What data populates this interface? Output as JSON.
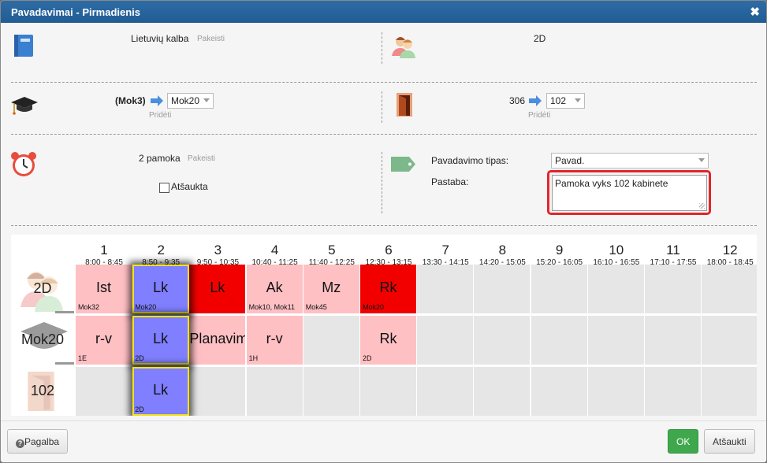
{
  "dialog": {
    "title": "Pavadavimai - Pirmadienis",
    "close": "✖"
  },
  "subject": {
    "name": "Lietuvių kalba",
    "change_link": "Pakeisti"
  },
  "group": {
    "name": "2D"
  },
  "teacher": {
    "from": "(Mok3)",
    "to": "Mok20",
    "add_link": "Pridėti"
  },
  "room": {
    "from": "306",
    "to": "102",
    "add_link": "Pridėti"
  },
  "lesson": {
    "number": "2 pamoka",
    "change_link": "Pakeisti",
    "cancelled_label": "Atšaukta",
    "cancelled_checked": false
  },
  "substitution": {
    "type_label": "Pavadavimo tipas:",
    "type_value": "Pavad.",
    "note_label": "Pastaba:",
    "note_value": "Pamoka vyks 102 kabinete"
  },
  "timetable": {
    "columns": [
      {
        "num": "1",
        "time": "8:00 - 8:45"
      },
      {
        "num": "2",
        "time": "8:50 - 9:35"
      },
      {
        "num": "3",
        "time": "9:50 - 10:35"
      },
      {
        "num": "4",
        "time": "10:40 - 11:25"
      },
      {
        "num": "5",
        "time": "11:40 - 12:25"
      },
      {
        "num": "6",
        "time": "12:30 - 13:15"
      },
      {
        "num": "7",
        "time": "13:30 - 14:15"
      },
      {
        "num": "8",
        "time": "14:20 - 15:05"
      },
      {
        "num": "9",
        "time": "15:20 - 16:05"
      },
      {
        "num": "10",
        "time": "16:10 - 16:55"
      },
      {
        "num": "11",
        "time": "17:10 - 17:55"
      },
      {
        "num": "12",
        "time": "18:00 - 18:45"
      }
    ],
    "rows": [
      {
        "label": "2D",
        "cells": [
          {
            "subj": "Ist",
            "sub": "Mok32",
            "style": "pink"
          },
          {
            "subj": "Lk",
            "sub": "Mok20",
            "style": "blue"
          },
          {
            "subj": "Lk",
            "sub": "",
            "style": "red"
          },
          {
            "subj": "Ak",
            "sub": "Mok10, Mok11",
            "style": "pink"
          },
          {
            "subj": "Mz",
            "sub": "Mok45",
            "style": "pink"
          },
          {
            "subj": "Rk",
            "sub": "Mok20",
            "style": "red"
          }
        ]
      },
      {
        "label": "Mok20",
        "cells": [
          {
            "subj": "r-v",
            "sub": "1E",
            "style": "pink"
          },
          {
            "subj": "Lk",
            "sub": "2D",
            "style": "blue"
          },
          {
            "subj": "Planavim",
            "sub": "",
            "style": "pink"
          },
          {
            "subj": "r-v",
            "sub": "1H",
            "style": "pink"
          },
          {
            "subj": "",
            "sub": "",
            "style": "empty"
          },
          {
            "subj": "Rk",
            "sub": "2D",
            "style": "pink"
          }
        ]
      },
      {
        "label": "102",
        "cells": [
          {
            "subj": "",
            "sub": "",
            "style": "empty"
          },
          {
            "subj": "Lk",
            "sub": "2D",
            "style": "blue"
          }
        ]
      }
    ]
  },
  "footer": {
    "help": "Pagalba",
    "ok": "OK",
    "cancel": "Atšaukti"
  },
  "colors": {
    "title_bar": "#215c94",
    "pink": "#ffc0c4",
    "red": "#f20000",
    "blue": "#7f7fff",
    "highlight": "#f1e21b",
    "ok_green": "#3fa84c",
    "note_border": "#e3242b"
  },
  "icons": [
    "book-icon",
    "users-icon",
    "graduation-cap-icon",
    "door-icon",
    "alarm-clock-icon",
    "tag-icon",
    "arrow-right-icon",
    "help-circle-icon",
    "close-icon"
  ]
}
